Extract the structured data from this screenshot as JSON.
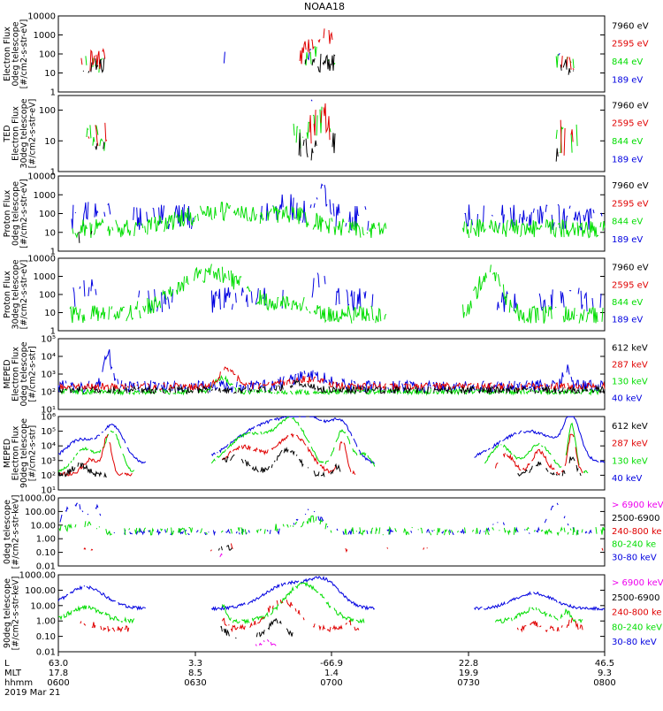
{
  "title": "NOAA18",
  "colors": {
    "black": "#000000",
    "red": "#e00000",
    "green": "#00dd00",
    "blue": "#0000e0",
    "magenta": "#ee00ee"
  },
  "time_axis": {
    "row_labels": [
      "L",
      "MLT",
      "hhmm",
      "2019 Mar 21"
    ],
    "ticks": [
      {
        "L": "63.0",
        "MLT": "17.8",
        "hhmm": "0600"
      },
      {
        "L": "3.3",
        "MLT": "8.5",
        "hhmm": "0630"
      },
      {
        "L": "-66.9",
        "MLT": "1.4",
        "hhmm": "0700"
      },
      {
        "L": "22.8",
        "MLT": "19.9",
        "hhmm": "0730"
      },
      {
        "L": "46.5",
        "MLT": "9.3",
        "hhmm": "0800"
      }
    ]
  },
  "chart_data": [
    {
      "type": "line",
      "scale": "log",
      "ylabel": [
        "Electron Flux",
        "0deg telescope",
        "[#/cm2-s-str-eV]"
      ],
      "yticks": [
        "1",
        "10",
        "100",
        "1000",
        "10000"
      ],
      "ylim": [
        1,
        10000
      ],
      "series": [
        {
          "name": "7960 eV",
          "color": "#000000"
        },
        {
          "name": "2595 eV",
          "color": "#e00000"
        },
        {
          "name": "844 eV",
          "color": "#00dd00"
        },
        {
          "name": "189 eV",
          "color": "#0000e0"
        }
      ]
    },
    {
      "type": "line",
      "scale": "log",
      "ylabel": [
        "TED",
        "Electron Flux",
        "30deg telescope",
        "[#/cm2-s-str-eV]"
      ],
      "yticks": [
        "1",
        "10",
        "100"
      ],
      "ylim": [
        1,
        300
      ],
      "series": [
        {
          "name": "7960 eV",
          "color": "#000000"
        },
        {
          "name": "2595 eV",
          "color": "#e00000"
        },
        {
          "name": "844 eV",
          "color": "#00dd00"
        },
        {
          "name": "189 eV",
          "color": "#0000e0"
        }
      ]
    },
    {
      "type": "line",
      "scale": "log",
      "ylabel": [
        "Proton Flux",
        "0deg telescope",
        "[#/cm2-s-str-eV]"
      ],
      "yticks": [
        "1",
        "10",
        "100",
        "1000",
        "10000"
      ],
      "ylim": [
        1,
        10000
      ],
      "series": [
        {
          "name": "7960 eV",
          "color": "#000000"
        },
        {
          "name": "2595 eV",
          "color": "#e00000"
        },
        {
          "name": "844 eV",
          "color": "#00dd00"
        },
        {
          "name": "189 eV",
          "color": "#0000e0"
        }
      ]
    },
    {
      "type": "line",
      "scale": "log",
      "ylabel": [
        "Proton Flux",
        "30deg telescope",
        "[#/cm2-s-str-eV]"
      ],
      "yticks": [
        "1",
        "10",
        "100",
        "1000",
        "10000"
      ],
      "ylim": [
        1,
        10000
      ],
      "series": [
        {
          "name": "7960 eV",
          "color": "#000000"
        },
        {
          "name": "2595 eV",
          "color": "#e00000"
        },
        {
          "name": "844 eV",
          "color": "#00dd00"
        },
        {
          "name": "189 eV",
          "color": "#0000e0"
        }
      ]
    },
    {
      "type": "line",
      "scale": "log",
      "ylabel": [
        "MEPED",
        "Electron Flux",
        "0deg telescope",
        "[#/cm2-s-str]"
      ],
      "yticks": [
        "10¹",
        "10²",
        "10³",
        "10⁴",
        "10⁵"
      ],
      "ylim": [
        10,
        100000
      ],
      "series": [
        {
          "name": "612 keV",
          "color": "#000000"
        },
        {
          "name": "287 keV",
          "color": "#e00000"
        },
        {
          "name": "130 keV",
          "color": "#00dd00"
        },
        {
          "name": "40 keV",
          "color": "#0000e0"
        }
      ]
    },
    {
      "type": "line",
      "scale": "log",
      "ylabel": [
        "MEPED",
        "Electron Flux",
        "90deg telescope",
        "[#/cm2-s-str]"
      ],
      "yticks": [
        "10¹",
        "10²",
        "10³",
        "10⁴",
        "10⁵",
        "10⁶"
      ],
      "ylim": [
        10,
        1000000
      ],
      "series": [
        {
          "name": "612 keV",
          "color": "#000000"
        },
        {
          "name": "287 keV",
          "color": "#e00000"
        },
        {
          "name": "130 keV",
          "color": "#00dd00"
        },
        {
          "name": "40 keV",
          "color": "#0000e0"
        }
      ]
    },
    {
      "type": "line",
      "scale": "log",
      "ylabel": [
        "0deg telescope",
        "[#/cm2-s-str-keV]"
      ],
      "yticks": [
        "0.01",
        "0.10",
        "1.00",
        "10.00",
        "100.00",
        "1000.00"
      ],
      "ylim": [
        0.01,
        1000
      ],
      "series": [
        {
          "name": "> 6900 keV",
          "color": "#ee00ee"
        },
        {
          "name": "2500-6900",
          "color": "#000000"
        },
        {
          "name": "240-800 ke",
          "color": "#e00000"
        },
        {
          "name": "80-240 ke",
          "color": "#00dd00"
        },
        {
          "name": "30-80 keV",
          "color": "#0000e0"
        }
      ]
    },
    {
      "type": "line",
      "scale": "log",
      "ylabel": [
        "90deg telescope",
        "[#/cm2-s-str-keV]"
      ],
      "yticks": [
        "0.01",
        "0.10",
        "1.00",
        "10.00",
        "100.00",
        "1000.00"
      ],
      "ylim": [
        0.01,
        1000
      ],
      "series": [
        {
          "name": "> 6900 keV",
          "color": "#ee00ee"
        },
        {
          "name": "2500-6900",
          "color": "#000000"
        },
        {
          "name": "240-800 ke",
          "color": "#e00000"
        },
        {
          "name": "80-240 keV",
          "color": "#00dd00"
        },
        {
          "name": "30-80 keV",
          "color": "#0000e0"
        }
      ]
    }
  ]
}
